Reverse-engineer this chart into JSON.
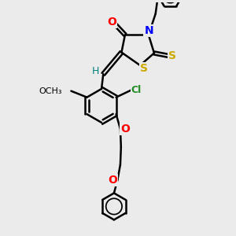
{
  "bg_color": "#ebebeb",
  "bond_color": "#000000",
  "bond_width": 1.8,
  "figsize": [
    3.0,
    3.0
  ],
  "dpi": 100,
  "xlim": [
    -2.5,
    2.5
  ],
  "ylim": [
    -3.8,
    2.8
  ]
}
